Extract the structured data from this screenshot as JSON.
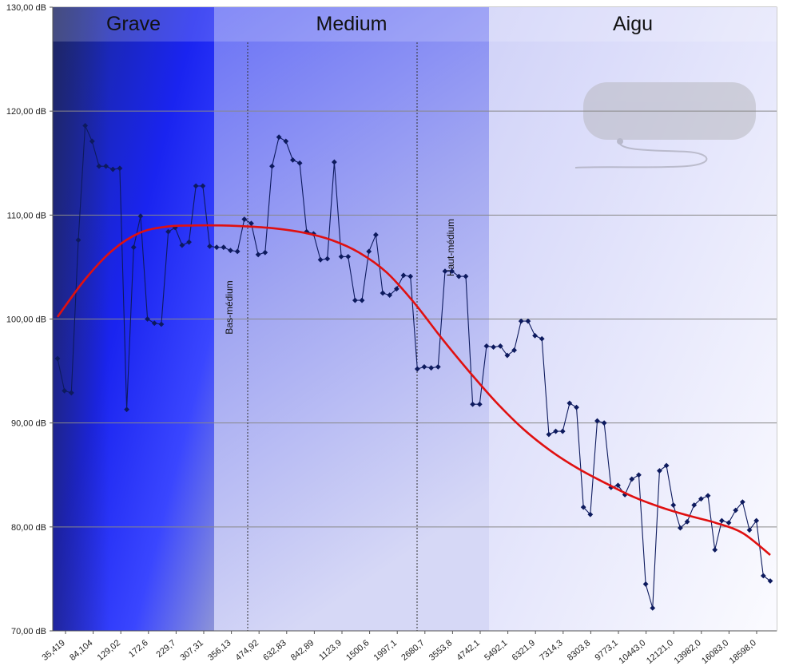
{
  "chart_data": {
    "type": "line",
    "title": "",
    "xlabel": "",
    "ylabel": "",
    "ylim": [
      70,
      130
    ],
    "y_unit": "dB",
    "y_ticks": [
      "70,00 dB",
      "80,00 dB",
      "90,00 dB",
      "100,00 dB",
      "110,00 dB",
      "120,00 dB",
      "130,00 dB"
    ],
    "x_tick_labels": [
      "35,419",
      "84,104",
      "129,02",
      "172,6",
      "229,7",
      "307,31",
      "356,13",
      "474,92",
      "632,83",
      "842,89",
      "1123,9",
      "1500,6",
      "1997,1",
      "2680,7",
      "3553,8",
      "4742,1",
      "5492,1",
      "6321,9",
      "7314,3",
      "8303,8",
      "9773,1",
      "10443,0",
      "12121,0",
      "13982,0",
      "16083,0",
      "18598,0"
    ],
    "bands": [
      {
        "name": "Grave",
        "from_index": 0,
        "to_index": 29
      },
      {
        "name": "Medium",
        "from_index": 29,
        "to_index": 80
      },
      {
        "name": "Aigu",
        "from_index": 80,
        "to_index": 133
      }
    ],
    "markers": [
      {
        "label": "Bas-médium",
        "index": 35
      },
      {
        "label": "Haut-médium",
        "index": 67
      }
    ],
    "series": [
      {
        "values": [
          96.2,
          93.1,
          92.9,
          107.6,
          118.6,
          117.1,
          114.7,
          114.7,
          114.4,
          114.5,
          91.3,
          106.9,
          109.9,
          100.0,
          99.6,
          99.5,
          108.4,
          108.8,
          107.1,
          107.4,
          112.8,
          112.8,
          107.0,
          106.9,
          106.9,
          106.6,
          106.5,
          109.6,
          109.2,
          106.2,
          106.4,
          114.7,
          117.5,
          117.1,
          115.3,
          115.0,
          108.4,
          108.2,
          105.7,
          105.8,
          115.1,
          106.0,
          106.0,
          101.8,
          101.8,
          106.5,
          108.1,
          102.5,
          102.3,
          102.9,
          104.2,
          104.1,
          95.2,
          95.4,
          95.3,
          95.4,
          104.6,
          104.6,
          104.1,
          104.1,
          91.8,
          91.8,
          97.4,
          97.3,
          97.4,
          96.5,
          97.0,
          99.8,
          99.8,
          98.4,
          98.1,
          88.9,
          89.2,
          89.2,
          91.9,
          91.5,
          81.9,
          81.2,
          90.2,
          90.0,
          83.8,
          84.0,
          83.1,
          84.6,
          85.0,
          74.5,
          72.2,
          85.4,
          85.9,
          82.1,
          79.9,
          80.5,
          82.1,
          82.7,
          83.0,
          77.8,
          80.6,
          80.4,
          81.6,
          82.4,
          79.7,
          80.6,
          75.3,
          74.8
        ]
      },
      {
        "name": "",
        "trend": true,
        "values": [
          100.2,
          103.8,
          106.6,
          108.3,
          108.9,
          109.0,
          109.0,
          108.9,
          108.7,
          108.3,
          107.6,
          106.4,
          104.5,
          101.6,
          98.2,
          95.0,
          92.0,
          89.4,
          87.3,
          85.6,
          84.2,
          82.9,
          81.9,
          81.1,
          80.4,
          79.4,
          77.3
        ]
      }
    ],
    "colors": {
      "series": "#0d1a5e",
      "trend": "#e01010",
      "grid": "#888888"
    }
  }
}
